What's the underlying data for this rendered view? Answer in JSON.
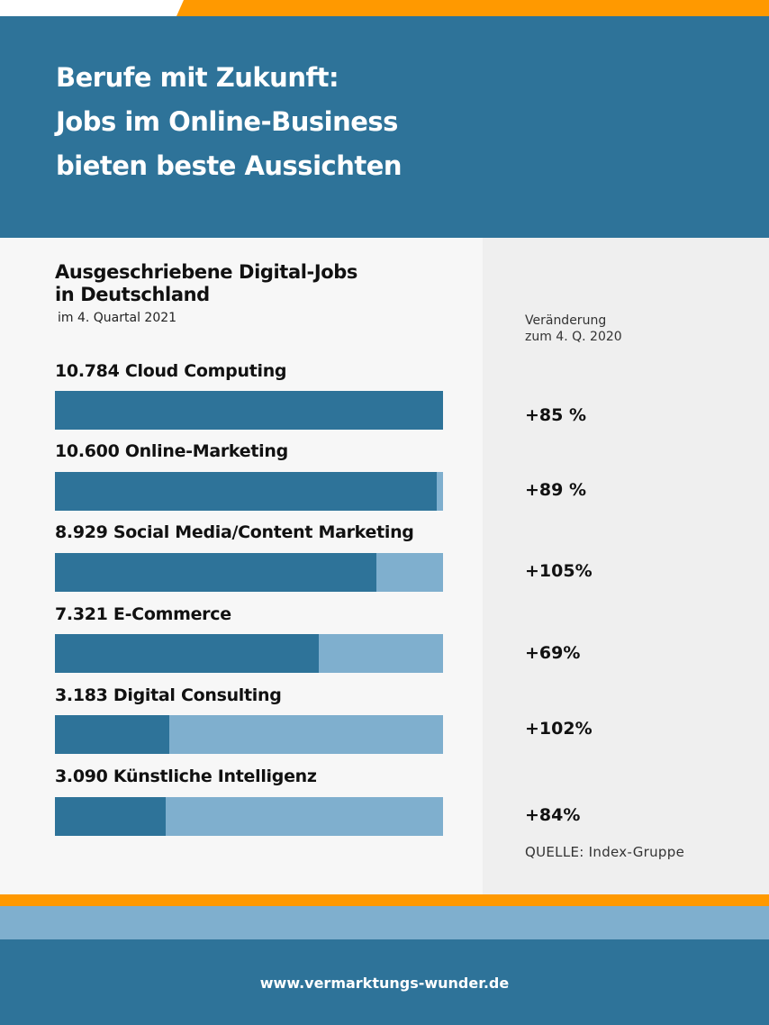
{
  "header": {
    "title_lines": [
      "Berufe mit Zukunft:",
      "Jobs im Online-Business",
      "bieten beste Aussichten"
    ]
  },
  "colors": {
    "primary": "#2e7399",
    "light": "#7fafce",
    "accent": "#ff9900"
  },
  "chart_data": {
    "type": "bar",
    "title": "Ausgeschriebene Digital-Jobs in Deutschland",
    "title_lines": [
      "Ausgeschriebene Digital-Jobs",
      "in Deutschland"
    ],
    "subtitle": "im 4. Quartal 2021",
    "change_header": [
      "Veränderung",
      "zum 4. Q. 2020"
    ],
    "max": 10784,
    "items": [
      {
        "label": "10.784 Cloud Computing",
        "category": "Cloud Computing",
        "value": 10784,
        "change": "+85 %"
      },
      {
        "label": "10.600 Online-Marketing",
        "category": "Online-Marketing",
        "value": 10600,
        "change": "+89 %"
      },
      {
        "label": "8.929 Social Media/Content Marketing",
        "category": "Social Media/Content Marketing",
        "value": 8929,
        "change": "+105%"
      },
      {
        "label": "7.321 E-Commerce",
        "category": "E-Commerce",
        "value": 7321,
        "change": "+69%"
      },
      {
        "label": "3.183 Digital Consulting",
        "category": "Digital Consulting",
        "value": 3183,
        "change": "+102%"
      },
      {
        "label": "3.090 Künstliche Intelligenz",
        "category": "Künstliche Intelligenz",
        "value": 3090,
        "change": "+84%"
      }
    ],
    "source": "QUELLE: Index-Gruppe"
  },
  "footer": {
    "url": "www.vermarktungs-wunder.de"
  }
}
